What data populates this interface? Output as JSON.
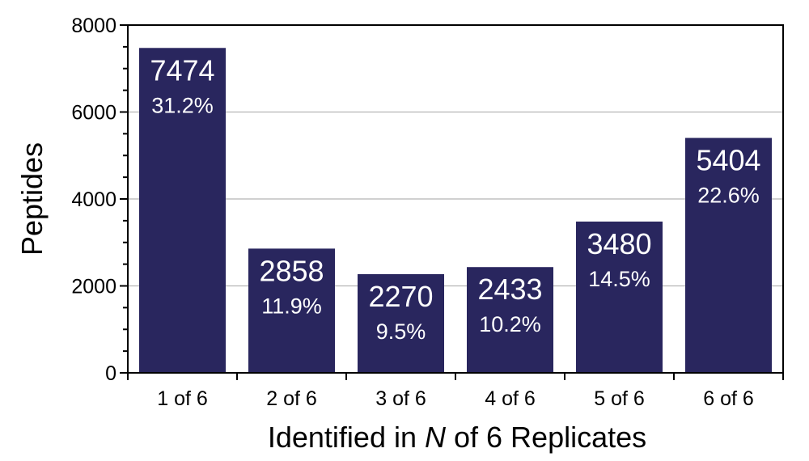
{
  "chart_data": {
    "type": "bar",
    "categories": [
      "1 of 6",
      "2 of 6",
      "3 of 6",
      "4 of 6",
      "5 of 6",
      "6 of 6"
    ],
    "values": [
      7474,
      2858,
      2270,
      2433,
      3480,
      5404
    ],
    "percent_labels": [
      "31.2%",
      "11.9%",
      "9.5%",
      "10.2%",
      "14.5%",
      "22.6%"
    ],
    "ylabel": "Peptides",
    "xlabel": {
      "before": "Identified in ",
      "italic": "N",
      "after": " of 6 Replicates"
    },
    "ylim": [
      0,
      8000
    ],
    "yticks": [
      0,
      2000,
      4000,
      6000,
      8000
    ],
    "minor_step": 500,
    "grid": true,
    "bar_color": "#29265e",
    "grid_color": "#b4b4b4"
  }
}
